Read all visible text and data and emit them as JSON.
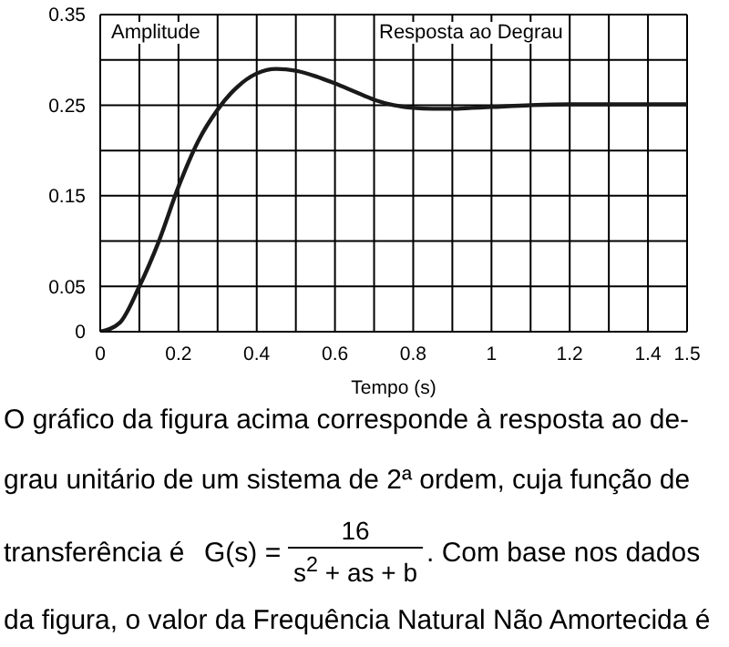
{
  "chart_data": {
    "type": "line",
    "xlabel": "Tempo (s)",
    "x": [
      0,
      0.05,
      0.1,
      0.15,
      0.2,
      0.25,
      0.3,
      0.35,
      0.4,
      0.45,
      0.5,
      0.55,
      0.6,
      0.65,
      0.7,
      0.75,
      0.8,
      0.85,
      0.9,
      0.95,
      1.0,
      1.1,
      1.2,
      1.3,
      1.4,
      1.5
    ],
    "series": [
      {
        "color": "#1a1a1a",
        "values": [
          0,
          0.01,
          0.05,
          0.1,
          0.16,
          0.21,
          0.245,
          0.27,
          0.285,
          0.29,
          0.288,
          0.282,
          0.274,
          0.265,
          0.256,
          0.25,
          0.247,
          0.246,
          0.246,
          0.247,
          0.248,
          0.25,
          0.251,
          0.251,
          0.251,
          0.251
        ]
      }
    ],
    "xlim": [
      0,
      1.5
    ],
    "ylim": [
      0,
      0.35
    ],
    "xticks": [
      0,
      {
        "value": 0.1,
        "label": null
      },
      0.2,
      {
        "value": 0.3,
        "label": null
      },
      0.4,
      {
        "value": 0.5,
        "label": null
      },
      0.6,
      {
        "value": 0.7,
        "label": null
      },
      0.8,
      {
        "value": 0.9,
        "label": null
      },
      1,
      {
        "value": 1.1,
        "label": null
      },
      1.2,
      {
        "value": 1.3,
        "label": null
      },
      1.4,
      1.5
    ],
    "yticks": [
      0,
      0.05,
      {
        "value": 0.1,
        "label": null
      },
      0.15,
      {
        "value": 0.2,
        "label": null
      },
      0.25,
      {
        "value": 0.3,
        "label": null
      },
      0.35
    ],
    "grid": true,
    "marker": "none",
    "line_style": "solid",
    "annotations": [
      "Amplitude",
      "Resposta ao Degrau",
      "O gráfico da figura acima corresponde à resposta ao de-",
      "grau unitário de um sistema de 2ª ordem, cuja função de",
      "transferência é",
      "G(s) =",
      "16",
      "s$^{2}$ + as + b",
      ". Com base nos dados",
      "da figura, o valor da Frequência Natural Não Amortecida é"
    ]
  }
}
